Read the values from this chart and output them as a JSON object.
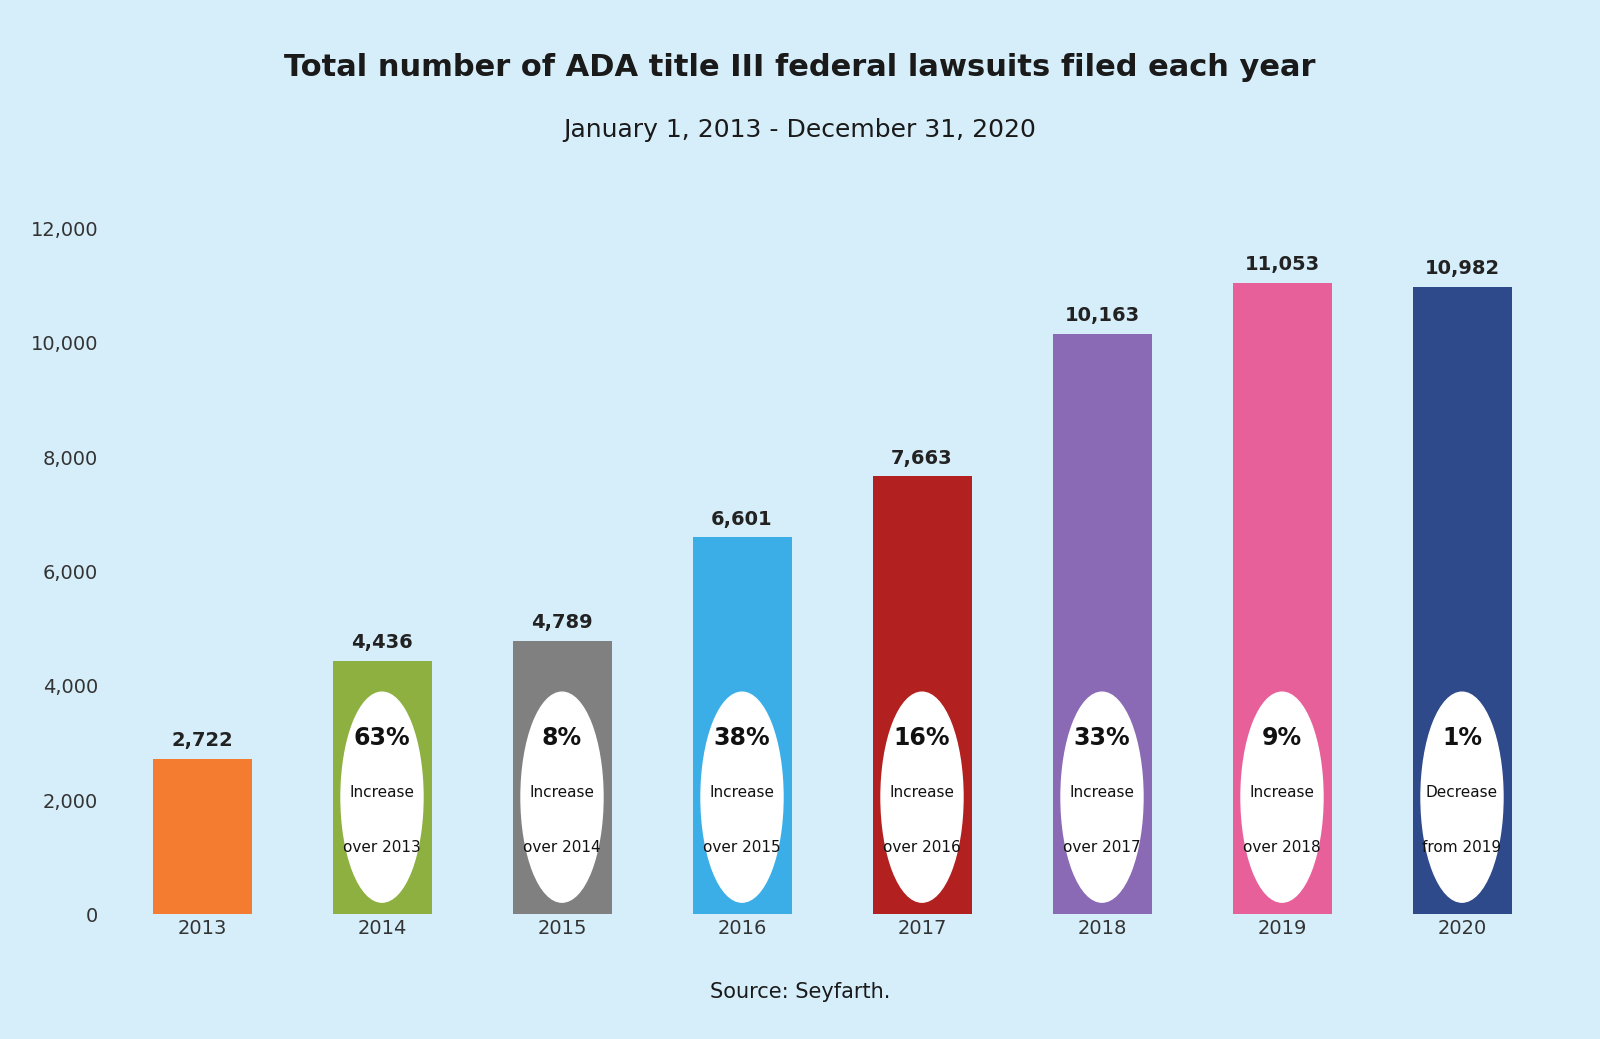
{
  "title": "Total number of ADA title III federal lawsuits filed each year",
  "subtitle": "January 1, 2013 - December 31, 2020",
  "source": "Source: Seyfarth.",
  "years": [
    "2013",
    "2014",
    "2015",
    "2016",
    "2017",
    "2018",
    "2019",
    "2020"
  ],
  "values": [
    2722,
    4436,
    4789,
    6601,
    7663,
    10163,
    11053,
    10982
  ],
  "bar_colors": [
    "#F47C30",
    "#8DB040",
    "#808080",
    "#3BAEE8",
    "#B22020",
    "#8A6AB5",
    "#E8609A",
    "#2E4A8A"
  ],
  "background_color": "#D6EEFA",
  "ylim": [
    0,
    12000
  ],
  "yticks": [
    0,
    2000,
    4000,
    6000,
    8000,
    10000,
    12000
  ],
  "circle_labels": [
    {
      "pct": "63%",
      "line2": "Increase",
      "line3": "over 2013"
    },
    {
      "pct": "8%",
      "line2": "Increase",
      "line3": "over 2014"
    },
    {
      "pct": "38%",
      "line2": "Increase",
      "line3": "over 2015"
    },
    {
      "pct": "16%",
      "line2": "Increase",
      "line3": "over 2016"
    },
    {
      "pct": "33%",
      "line2": "Increase",
      "line3": "over 2017"
    },
    {
      "pct": "9%",
      "line2": "Increase",
      "line3": "over 2018"
    },
    {
      "pct": "1%",
      "line2": "Decrease",
      "line3": "from 2019"
    }
  ],
  "title_fontsize": 22,
  "subtitle_fontsize": 18,
  "source_fontsize": 15,
  "bar_value_fontsize": 14,
  "circle_pct_fontsize": 17,
  "circle_text_fontsize": 11,
  "tick_fontsize": 14
}
